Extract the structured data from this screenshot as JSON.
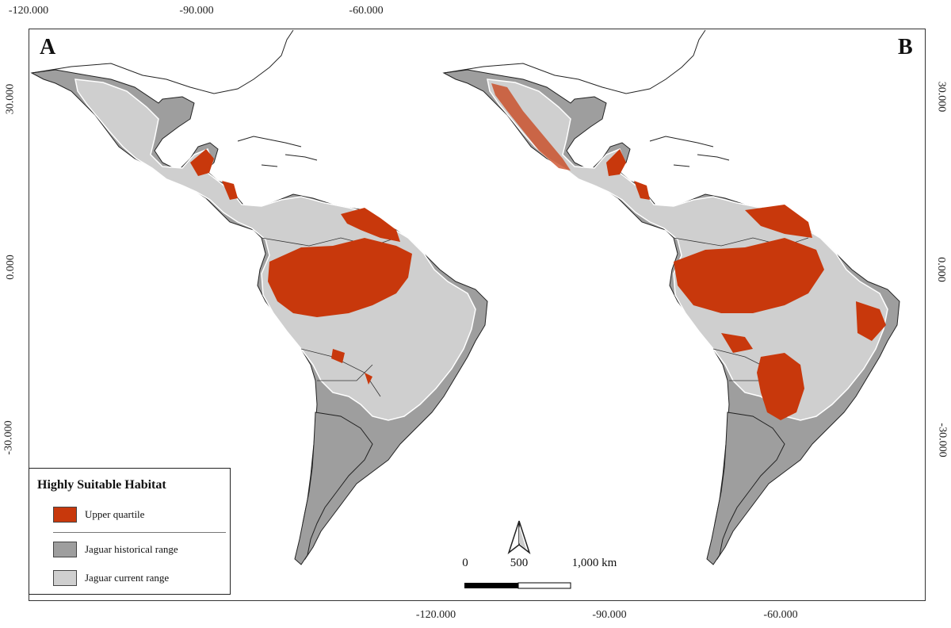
{
  "axes": {
    "top_ticks": [
      "-120.000",
      "-90.000",
      "-60.000"
    ],
    "bottom_ticks": [
      "-120.000",
      "-90.000",
      "-60.000"
    ],
    "left_ticks": [
      "30.000",
      "0.000",
      "-30.000"
    ],
    "right_ticks": [
      "30.000",
      "0.000",
      "-30.000"
    ]
  },
  "panels": {
    "left_label": "A",
    "right_label": "B"
  },
  "legend": {
    "title": "Highly Suitable Habitat",
    "items": [
      {
        "label": "Upper quartile",
        "color": "#c8380c"
      },
      {
        "label": "Jaguar historical range",
        "color": "#9e9e9e"
      },
      {
        "label": "Jaguar current range",
        "color": "#cfcfcf"
      }
    ]
  },
  "scale_bar": {
    "labels": [
      "0",
      "500",
      "1,000 km"
    ]
  },
  "colors": {
    "habitat": "#c8380c",
    "historical": "#9e9e9e",
    "current": "#cfcfcf",
    "land_outline": "#222222",
    "background": "#ffffff"
  },
  "icons": {
    "north_arrow": "north-arrow-icon"
  }
}
